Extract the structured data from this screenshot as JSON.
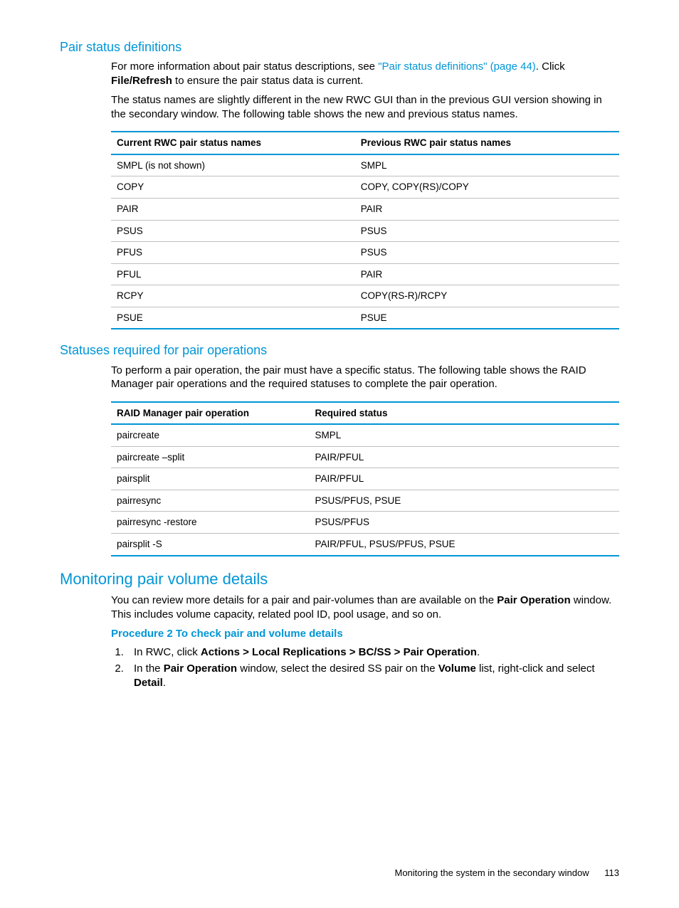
{
  "section1": {
    "heading": "Pair status definitions",
    "p1_a": "For more information about pair status descriptions, see ",
    "p1_link": "\"Pair status definitions\" (page 44)",
    "p1_b": ". Click ",
    "p1_bold": "File/Refresh",
    "p1_c": " to ensure the pair status data is current.",
    "p2": "The status names are slightly different in the new RWC GUI than in the previous GUI version showing in the secondary window. The following table shows the new and previous status names.",
    "table": {
      "h1": "Current RWC pair status names",
      "h2": "Previous RWC pair status names",
      "rows": [
        {
          "a": "SMPL (is not shown)",
          "b": "SMPL"
        },
        {
          "a": "COPY",
          "b": "COPY, COPY(RS)/COPY"
        },
        {
          "a": "PAIR",
          "b": "PAIR"
        },
        {
          "a": "PSUS",
          "b": "PSUS"
        },
        {
          "a": "PFUS",
          "b": "PSUS"
        },
        {
          "a": "PFUL",
          "b": "PAIR"
        },
        {
          "a": "RCPY",
          "b": "COPY(RS-R)/RCPY"
        },
        {
          "a": "PSUE",
          "b": "PSUE"
        }
      ]
    }
  },
  "section2": {
    "heading": "Statuses required for pair operations",
    "p1": "To perform a pair operation, the pair must have a specific status. The following table shows the RAID Manager pair operations and the required statuses to complete the pair operation.",
    "table": {
      "h1": "RAID Manager pair operation",
      "h2": "Required status",
      "rows": [
        {
          "a": "paircreate",
          "b": "SMPL"
        },
        {
          "a": "paircreate –split",
          "b": "PAIR/PFUL"
        },
        {
          "a": "pairsplit",
          "b": "PAIR/PFUL"
        },
        {
          "a": "pairresync",
          "b": "PSUS/PFUS, PSUE"
        },
        {
          "a": "pairresync -restore",
          "b": "PSUS/PFUS"
        },
        {
          "a": "pairsplit -S",
          "b": "PAIR/PFUL, PSUS/PFUS, PSUE"
        }
      ]
    }
  },
  "section3": {
    "heading": "Monitoring pair volume details",
    "p1_a": "You can review more details for a pair and pair-volumes than are available on the ",
    "p1_bold": "Pair Operation",
    "p1_b": " window. This includes volume capacity, related pool ID, pool usage, and so on.",
    "proc_heading": "Procedure 2 To check pair and volume details",
    "li1_a": "In RWC, click ",
    "li1_bold": "Actions > Local Replications > BC/SS > Pair Operation",
    "li1_b": ".",
    "li2_a": "In the ",
    "li2_bold1": "Pair Operation",
    "li2_b": " window, select the desired SS pair on the ",
    "li2_bold2": "Volume",
    "li2_c": " list, right-click and select ",
    "li2_bold3": "Detail",
    "li2_d": "."
  },
  "footer": {
    "text": "Monitoring the system in the secondary window",
    "page": "113"
  }
}
